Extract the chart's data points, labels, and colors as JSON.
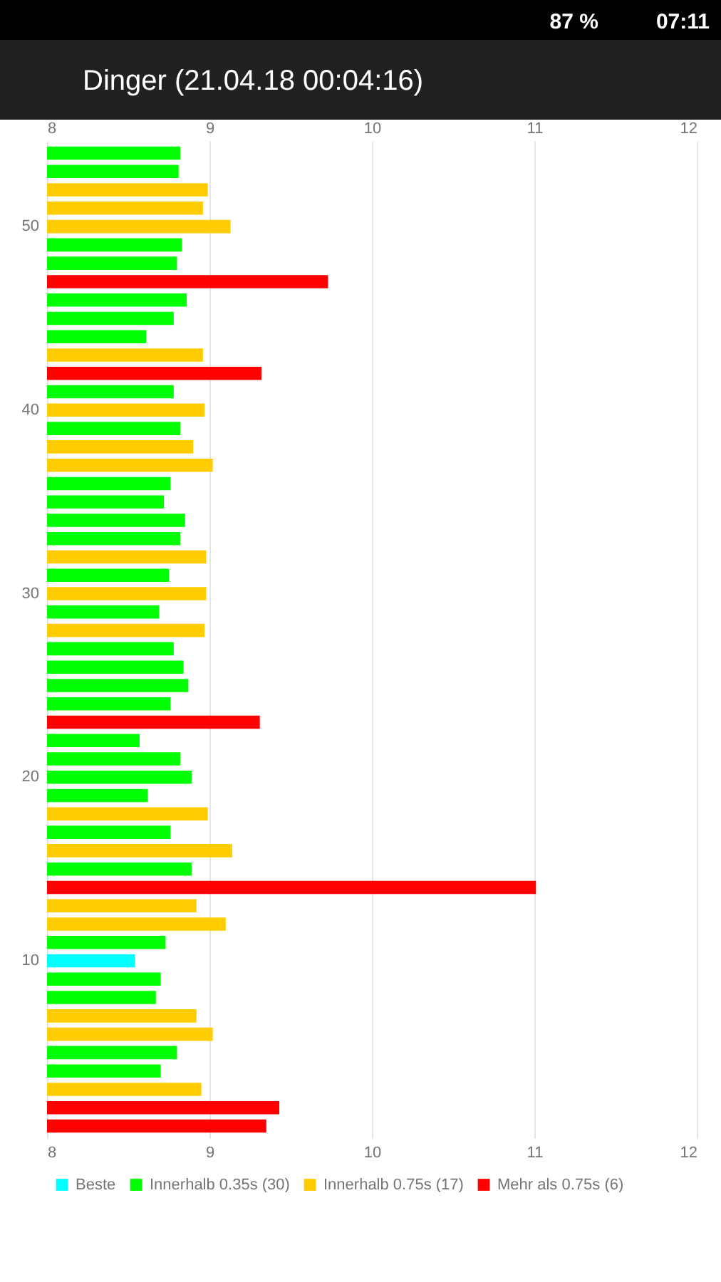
{
  "chart_data": {
    "type": "bar",
    "orientation": "horizontal",
    "title": "Dinger (21.04.18 00:04:16)",
    "annotations": [
      "87 %",
      "07:11"
    ],
    "categories": [
      null,
      null,
      null,
      null,
      "50",
      null,
      null,
      null,
      null,
      null,
      null,
      null,
      null,
      null,
      "40",
      null,
      null,
      null,
      null,
      null,
      null,
      null,
      null,
      null,
      "30",
      null,
      null,
      null,
      null,
      null,
      null,
      null,
      null,
      null,
      "20",
      null,
      null,
      null,
      null,
      null,
      null,
      null,
      null,
      null,
      "10",
      null,
      null,
      null,
      null,
      null,
      null,
      null,
      null,
      null
    ],
    "series": [
      {
        "name": "Beste",
        "color": "#00ffff",
        "values": [
          null,
          null,
          null,
          null,
          null,
          null,
          null,
          null,
          null,
          null,
          null,
          null,
          null,
          null,
          null,
          null,
          null,
          null,
          null,
          null,
          null,
          null,
          null,
          null,
          null,
          null,
          null,
          null,
          null,
          null,
          null,
          null,
          null,
          null,
          null,
          null,
          null,
          null,
          null,
          null,
          null,
          null,
          null,
          null,
          8.54,
          null,
          null,
          null,
          null,
          null,
          null,
          null,
          null,
          null
        ]
      },
      {
        "name": "Innerhalb 0.35s (30)",
        "color": "#00ff00",
        "values": [
          8.82,
          8.81,
          null,
          null,
          null,
          8.83,
          8.8,
          null,
          8.86,
          8.78,
          8.61,
          null,
          null,
          8.78,
          null,
          8.82,
          null,
          null,
          8.76,
          8.72,
          8.85,
          8.82,
          null,
          8.75,
          null,
          8.69,
          null,
          8.78,
          8.84,
          8.87,
          8.76,
          null,
          8.57,
          8.82,
          8.89,
          8.62,
          null,
          8.76,
          null,
          8.89,
          null,
          null,
          null,
          8.73,
          null,
          8.7,
          8.67,
          null,
          null,
          8.8,
          8.7,
          null,
          null,
          null
        ]
      },
      {
        "name": "Innerhalb 0.75s (17)",
        "color": "#ffcc00",
        "values": [
          null,
          null,
          8.99,
          8.96,
          9.13,
          null,
          null,
          null,
          null,
          null,
          null,
          8.96,
          null,
          null,
          8.97,
          null,
          8.9,
          9.02,
          null,
          null,
          null,
          null,
          8.98,
          null,
          8.98,
          null,
          8.97,
          null,
          null,
          null,
          null,
          null,
          null,
          null,
          null,
          null,
          8.99,
          null,
          9.14,
          null,
          null,
          8.92,
          9.1,
          null,
          null,
          null,
          null,
          8.92,
          9.02,
          null,
          null,
          8.95,
          null,
          null
        ]
      },
      {
        "name": "Mehr als 0.75s (6)",
        "color": "#ff0000",
        "values": [
          null,
          null,
          null,
          null,
          null,
          null,
          null,
          9.73,
          null,
          null,
          null,
          null,
          9.32,
          null,
          null,
          null,
          null,
          null,
          null,
          null,
          null,
          null,
          null,
          null,
          null,
          null,
          null,
          null,
          null,
          null,
          null,
          9.31,
          null,
          null,
          null,
          null,
          null,
          null,
          null,
          null,
          11.01,
          null,
          null,
          null,
          null,
          null,
          null,
          null,
          null,
          null,
          null,
          null,
          9.43,
          9.35
        ]
      }
    ],
    "xlim": [
      8,
      12
    ],
    "xticks": [
      8,
      9,
      10,
      11,
      12
    ],
    "x2lim": [
      8,
      12
    ],
    "x2ticks": [
      8,
      9,
      10,
      11,
      12
    ],
    "grid": "x",
    "legend": "bottom"
  }
}
